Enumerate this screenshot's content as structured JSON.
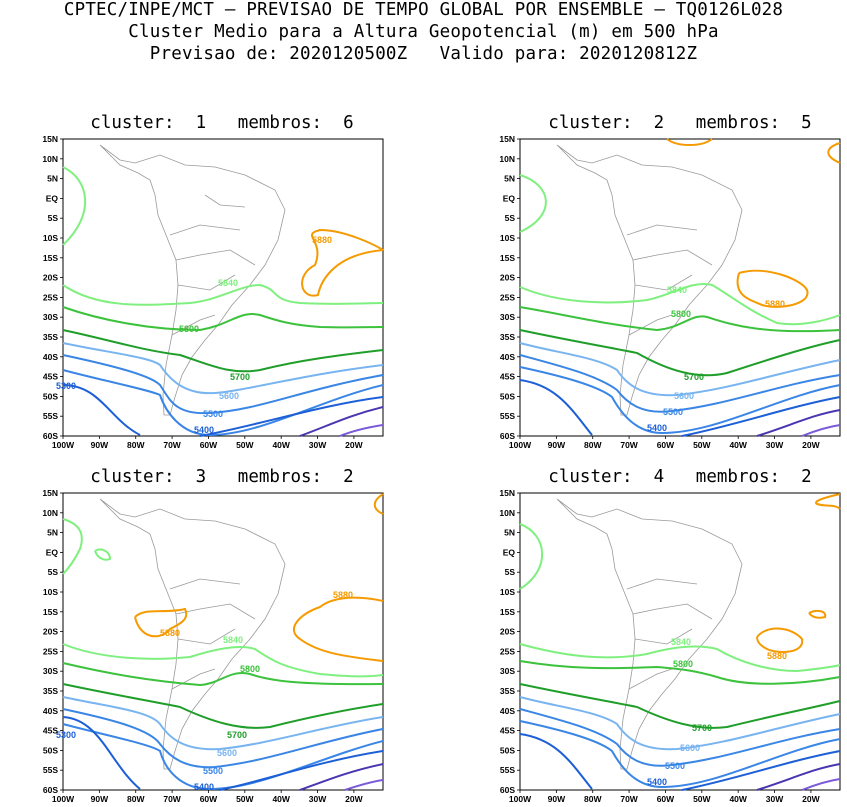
{
  "header": {
    "line1": "CPTEC/INPE/MCT – PREVISAO DE TEMPO GLOBAL POR ENSEMBLE – TQ0126L028",
    "line2": "Cluster Medio para a Altura Geopotencial (m) em 500 hPa",
    "line3": "Previsao de: 2020120500Z   Valido para: 2020120812Z"
  },
  "axis": {
    "lat_ticks": [
      "15N",
      "10N",
      "5N",
      "EQ",
      "5S",
      "10S",
      "15S",
      "20S",
      "25S",
      "30S",
      "35S",
      "40S",
      "45S",
      "50S",
      "55S",
      "60S"
    ],
    "lon_ticks": [
      "100W",
      "90W",
      "80W",
      "70W",
      "60W",
      "50W",
      "40W",
      "30W",
      "20W"
    ]
  },
  "colors": {
    "c5400": "#1c5fd6",
    "c5500": "#3a86e6",
    "c5600": "#78b4f0",
    "c5700": "#1f9e2a",
    "c5800": "#3cc23c",
    "c5840": "#7ff07f",
    "c5880": "#f59a00",
    "deep1": "#4a36b0",
    "deep2": "#7a5ad8"
  },
  "panels": [
    {
      "title": "cluster:  1   membros:  6",
      "labels": {
        "l5880": "5880",
        "l5840": "5840",
        "l5800": "5800",
        "l5700": "5700",
        "l5600": "5600",
        "l5500": "5500",
        "l5400": "5400",
        "l5300": "5300"
      }
    },
    {
      "title": "cluster:  2   membros:  5",
      "labels": {
        "l5880": "5880",
        "l5840": "5840",
        "l5800": "5800",
        "l5700": "5700",
        "l5600": "5600",
        "l5500": "5500",
        "l5400": "5400"
      }
    },
    {
      "title": "cluster:  3   membros:  2",
      "labels": {
        "l5880": "5880",
        "l5880b": "5880",
        "l5840": "5840",
        "l5800": "5800",
        "l5700": "5700",
        "l5600": "5600",
        "l5500": "5500",
        "l5400": "5400",
        "l5300": "5300"
      }
    },
    {
      "title": "cluster:  4   membros:  2",
      "labels": {
        "l5880": "5880",
        "l5840": "5840",
        "l5800": "5800",
        "l5700": "5700",
        "l5600": "5600",
        "l5500": "5500",
        "l5400": "5400"
      }
    }
  ]
}
